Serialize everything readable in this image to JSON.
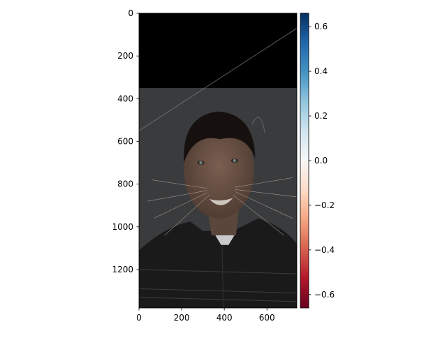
{
  "chart_data": {
    "type": "heatmap",
    "title": "",
    "xlabel": "",
    "ylabel": "",
    "image": {
      "description_colors": {
        "top_band": "#000000",
        "background": "#3a3b3d",
        "skin": "#6a5346",
        "hair": "#16110f",
        "shirt": "#1a1a1b",
        "undershirt": "#c9c9c9",
        "shadow": "#0e0e0f",
        "eye": "#6c7f7a",
        "mouth": "#cfc6bf",
        "whisker": "#bdb6ac",
        "ear_outline": "#5d5e60",
        "diagonal_line": "#808080"
      },
      "width_units": 740,
      "height_units": 1380
    },
    "xlim": [
      0,
      740
    ],
    "ylim": [
      1380,
      0
    ],
    "x_ticks": [
      0,
      200,
      400,
      600
    ],
    "x_tick_labels": [
      "0",
      "200",
      "400",
      "600"
    ],
    "y_ticks": [
      0,
      200,
      400,
      600,
      800,
      1000,
      1200
    ],
    "y_tick_labels": [
      "0",
      "200",
      "400",
      "600",
      "800",
      "1000",
      "1200"
    ],
    "colorbar": {
      "colormap": "RdBu",
      "range": [
        -0.66,
        0.66
      ],
      "ticks": [
        0.6,
        0.4,
        0.2,
        0.0,
        -0.2,
        -0.4,
        -0.6
      ],
      "tick_labels": [
        "0.6",
        "0.4",
        "0.2",
        "0.0",
        "−0.2",
        "−0.4",
        "−0.6"
      ],
      "stops": [
        "#053061",
        "#2166ac",
        "#4393c3",
        "#92c5de",
        "#d1e5f0",
        "#f7f7f7",
        "#fddbc7",
        "#f4a582",
        "#d6604d",
        "#b2182b",
        "#67001f"
      ]
    }
  }
}
